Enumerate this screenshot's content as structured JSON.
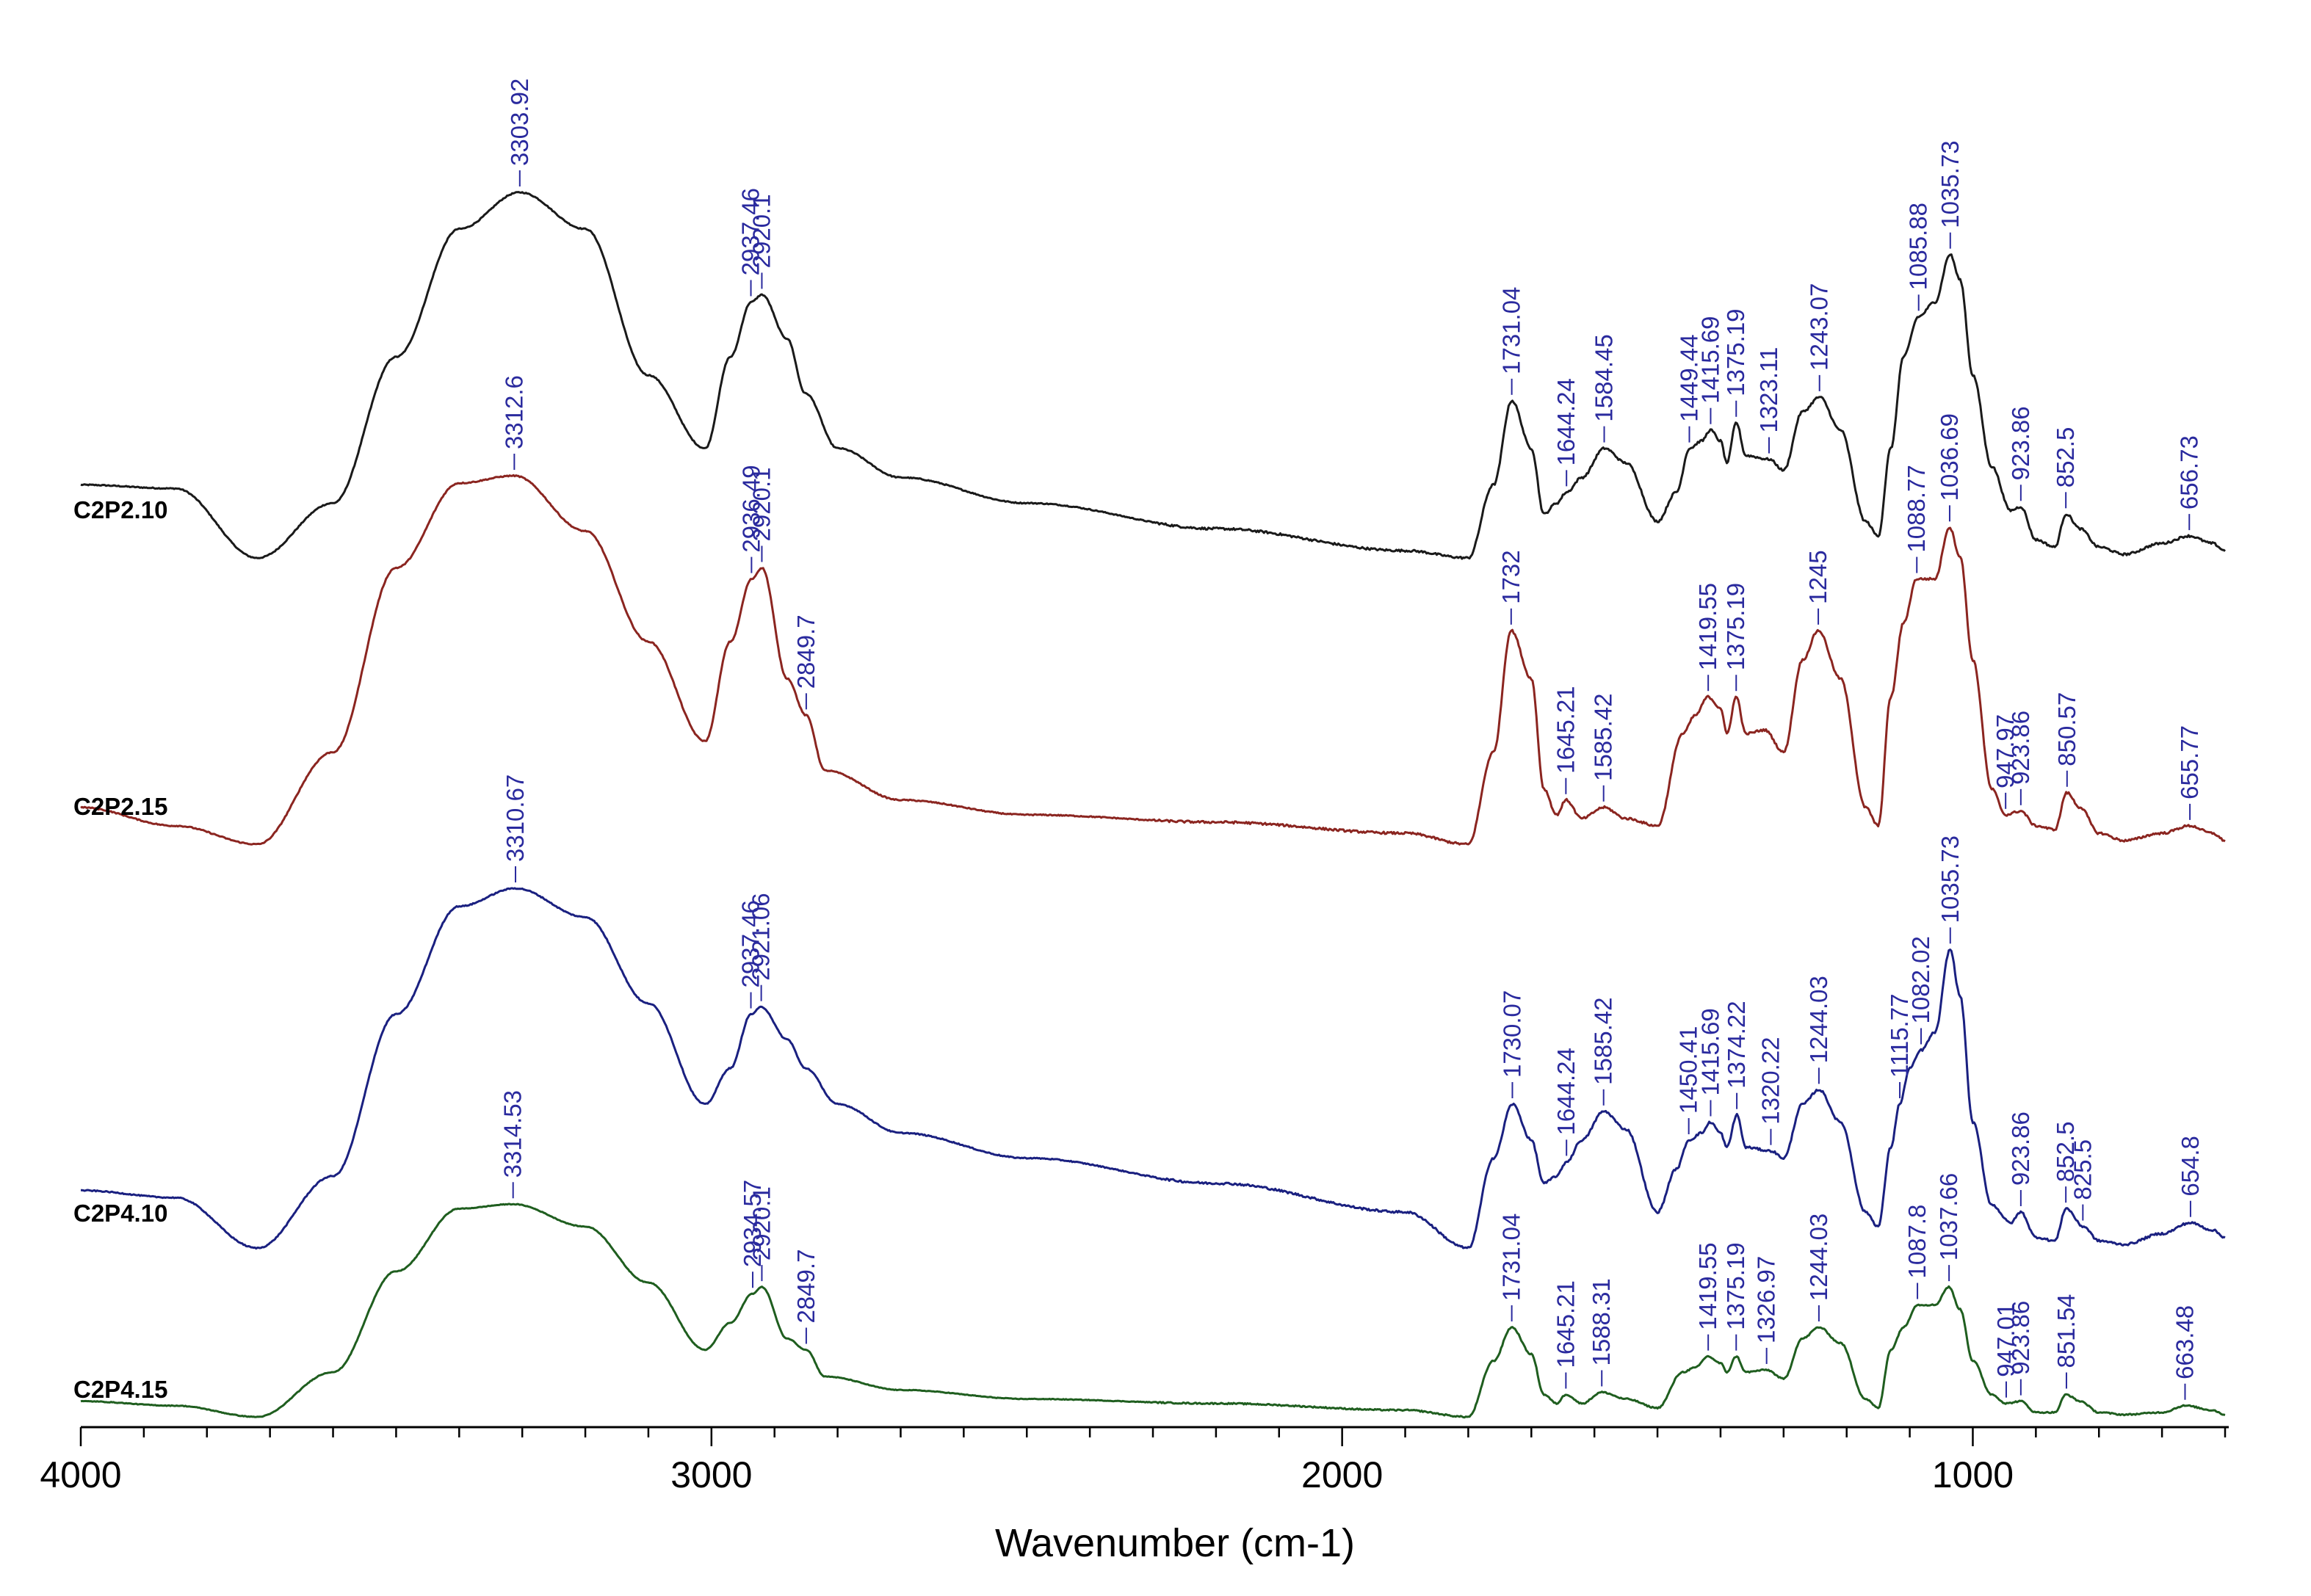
{
  "chart_data": {
    "type": "line",
    "title": "",
    "xlabel": "Wavenumber (cm-1)",
    "ylabel": "",
    "xlim": [
      4000,
      600
    ],
    "x_reversed": true,
    "x_ticks": [
      4000,
      3000,
      2000,
      1000
    ],
    "x_tick_labels": [
      "4000",
      "3000",
      "2000",
      "1000"
    ],
    "grid": false,
    "peak_label_color": "#2a2a9e",
    "series": [
      {
        "name": "C2P2.10",
        "color": "#1a1a1a",
        "points": [
          [
            4000,
            0.2
          ],
          [
            3850,
            0.19
          ],
          [
            3720,
            0.0
          ],
          [
            3600,
            0.15
          ],
          [
            3500,
            0.55
          ],
          [
            3400,
            0.9
          ],
          [
            3304,
            1.0
          ],
          [
            3200,
            0.9
          ],
          [
            3100,
            0.5
          ],
          [
            3010,
            0.3
          ],
          [
            2970,
            0.55
          ],
          [
            2937,
            0.7
          ],
          [
            2920,
            0.72
          ],
          [
            2880,
            0.6
          ],
          [
            2851,
            0.45
          ],
          [
            2800,
            0.3
          ],
          [
            2700,
            0.22
          ],
          [
            2500,
            0.15
          ],
          [
            2200,
            0.08
          ],
          [
            1900,
            0.02
          ],
          [
            1800,
            0.0
          ],
          [
            1760,
            0.2
          ],
          [
            1731,
            0.43
          ],
          [
            1700,
            0.3
          ],
          [
            1680,
            0.12
          ],
          [
            1660,
            0.15
          ],
          [
            1644,
            0.18
          ],
          [
            1620,
            0.22
          ],
          [
            1584,
            0.3
          ],
          [
            1550,
            0.26
          ],
          [
            1500,
            0.1
          ],
          [
            1470,
            0.18
          ],
          [
            1449,
            0.3
          ],
          [
            1430,
            0.32
          ],
          [
            1416,
            0.35
          ],
          [
            1400,
            0.32
          ],
          [
            1390,
            0.26
          ],
          [
            1375,
            0.37
          ],
          [
            1360,
            0.28
          ],
          [
            1323,
            0.27
          ],
          [
            1300,
            0.24
          ],
          [
            1270,
            0.4
          ],
          [
            1243,
            0.44
          ],
          [
            1210,
            0.35
          ],
          [
            1170,
            0.1
          ],
          [
            1150,
            0.06
          ],
          [
            1130,
            0.3
          ],
          [
            1110,
            0.55
          ],
          [
            1086,
            0.66
          ],
          [
            1060,
            0.7
          ],
          [
            1036,
            0.83
          ],
          [
            1020,
            0.76
          ],
          [
            1000,
            0.5
          ],
          [
            970,
            0.25
          ],
          [
            940,
            0.13
          ],
          [
            924,
            0.14
          ],
          [
            900,
            0.05
          ],
          [
            870,
            0.03
          ],
          [
            852,
            0.12
          ],
          [
            830,
            0.08
          ],
          [
            800,
            0.03
          ],
          [
            760,
            0.01
          ],
          [
            700,
            0.04
          ],
          [
            657,
            0.06
          ],
          [
            620,
            0.04
          ],
          [
            600,
            0.02
          ]
        ]
      },
      {
        "name": "C2P2.15",
        "color": "#8b2520",
        "points": [
          [
            4000,
            0.1
          ],
          [
            3850,
            0.05
          ],
          [
            3720,
            0.0
          ],
          [
            3600,
            0.25
          ],
          [
            3500,
            0.75
          ],
          [
            3400,
            0.98
          ],
          [
            3313,
            1.0
          ],
          [
            3200,
            0.85
          ],
          [
            3100,
            0.55
          ],
          [
            3010,
            0.28
          ],
          [
            2970,
            0.55
          ],
          [
            2936,
            0.72
          ],
          [
            2920,
            0.75
          ],
          [
            2880,
            0.45
          ],
          [
            2850,
            0.35
          ],
          [
            2820,
            0.2
          ],
          [
            2700,
            0.12
          ],
          [
            2500,
            0.08
          ],
          [
            2200,
            0.06
          ],
          [
            1900,
            0.03
          ],
          [
            1800,
            0.0
          ],
          [
            1760,
            0.25
          ],
          [
            1732,
            0.58
          ],
          [
            1700,
            0.45
          ],
          [
            1680,
            0.15
          ],
          [
            1660,
            0.08
          ],
          [
            1645,
            0.12
          ],
          [
            1620,
            0.07
          ],
          [
            1585,
            0.1
          ],
          [
            1550,
            0.07
          ],
          [
            1500,
            0.05
          ],
          [
            1460,
            0.3
          ],
          [
            1440,
            0.35
          ],
          [
            1420,
            0.4
          ],
          [
            1400,
            0.37
          ],
          [
            1390,
            0.3
          ],
          [
            1375,
            0.4
          ],
          [
            1360,
            0.3
          ],
          [
            1330,
            0.31
          ],
          [
            1300,
            0.25
          ],
          [
            1270,
            0.5
          ],
          [
            1245,
            0.58
          ],
          [
            1210,
            0.45
          ],
          [
            1170,
            0.1
          ],
          [
            1150,
            0.05
          ],
          [
            1130,
            0.4
          ],
          [
            1110,
            0.6
          ],
          [
            1089,
            0.72
          ],
          [
            1060,
            0.72
          ],
          [
            1037,
            0.86
          ],
          [
            1020,
            0.78
          ],
          [
            1000,
            0.5
          ],
          [
            970,
            0.15
          ],
          [
            948,
            0.08
          ],
          [
            924,
            0.09
          ],
          [
            900,
            0.05
          ],
          [
            870,
            0.04
          ],
          [
            851,
            0.14
          ],
          [
            830,
            0.1
          ],
          [
            800,
            0.03
          ],
          [
            760,
            0.01
          ],
          [
            700,
            0.03
          ],
          [
            656,
            0.05
          ],
          [
            620,
            0.03
          ],
          [
            600,
            0.01
          ]
        ]
      },
      {
        "name": "C2P4.10",
        "color": "#1a2080",
        "points": [
          [
            4000,
            0.16
          ],
          [
            3850,
            0.14
          ],
          [
            3720,
            0.0
          ],
          [
            3600,
            0.2
          ],
          [
            3500,
            0.65
          ],
          [
            3400,
            0.95
          ],
          [
            3311,
            1.0
          ],
          [
            3200,
            0.92
          ],
          [
            3100,
            0.68
          ],
          [
            3010,
            0.4
          ],
          [
            2970,
            0.5
          ],
          [
            2937,
            0.65
          ],
          [
            2921,
            0.67
          ],
          [
            2880,
            0.58
          ],
          [
            2851,
            0.5
          ],
          [
            2800,
            0.4
          ],
          [
            2700,
            0.32
          ],
          [
            2500,
            0.25
          ],
          [
            2200,
            0.18
          ],
          [
            1900,
            0.1
          ],
          [
            1800,
            0.0
          ],
          [
            1760,
            0.25
          ],
          [
            1730,
            0.4
          ],
          [
            1700,
            0.3
          ],
          [
            1680,
            0.18
          ],
          [
            1660,
            0.2
          ],
          [
            1644,
            0.24
          ],
          [
            1620,
            0.3
          ],
          [
            1585,
            0.38
          ],
          [
            1550,
            0.33
          ],
          [
            1500,
            0.1
          ],
          [
            1470,
            0.22
          ],
          [
            1450,
            0.3
          ],
          [
            1430,
            0.32
          ],
          [
            1416,
            0.35
          ],
          [
            1400,
            0.32
          ],
          [
            1390,
            0.28
          ],
          [
            1374,
            0.37
          ],
          [
            1360,
            0.28
          ],
          [
            1320,
            0.27
          ],
          [
            1300,
            0.25
          ],
          [
            1270,
            0.4
          ],
          [
            1244,
            0.44
          ],
          [
            1210,
            0.35
          ],
          [
            1170,
            0.1
          ],
          [
            1150,
            0.06
          ],
          [
            1130,
            0.28
          ],
          [
            1116,
            0.4
          ],
          [
            1100,
            0.5
          ],
          [
            1082,
            0.55
          ],
          [
            1060,
            0.6
          ],
          [
            1036,
            0.83
          ],
          [
            1020,
            0.7
          ],
          [
            1000,
            0.35
          ],
          [
            970,
            0.12
          ],
          [
            940,
            0.07
          ],
          [
            924,
            0.1
          ],
          [
            900,
            0.03
          ],
          [
            870,
            0.02
          ],
          [
            852,
            0.11
          ],
          [
            825,
            0.06
          ],
          [
            800,
            0.02
          ],
          [
            760,
            0.01
          ],
          [
            700,
            0.04
          ],
          [
            655,
            0.07
          ],
          [
            620,
            0.05
          ],
          [
            600,
            0.03
          ]
        ]
      },
      {
        "name": "C2P4.15",
        "color": "#1f5e1f",
        "points": [
          [
            4000,
            0.07
          ],
          [
            3850,
            0.05
          ],
          [
            3720,
            0.0
          ],
          [
            3600,
            0.2
          ],
          [
            3500,
            0.65
          ],
          [
            3400,
            0.93
          ],
          [
            3315,
            0.95
          ],
          [
            3200,
            0.85
          ],
          [
            3100,
            0.6
          ],
          [
            3010,
            0.3
          ],
          [
            2970,
            0.42
          ],
          [
            2935,
            0.55
          ],
          [
            2920,
            0.58
          ],
          [
            2880,
            0.35
          ],
          [
            2850,
            0.3
          ],
          [
            2820,
            0.18
          ],
          [
            2700,
            0.12
          ],
          [
            2500,
            0.08
          ],
          [
            2200,
            0.06
          ],
          [
            1900,
            0.03
          ],
          [
            1800,
            0.0
          ],
          [
            1760,
            0.25
          ],
          [
            1731,
            0.4
          ],
          [
            1700,
            0.28
          ],
          [
            1680,
            0.1
          ],
          [
            1660,
            0.06
          ],
          [
            1645,
            0.1
          ],
          [
            1620,
            0.06
          ],
          [
            1588,
            0.11
          ],
          [
            1550,
            0.08
          ],
          [
            1500,
            0.04
          ],
          [
            1460,
            0.2
          ],
          [
            1440,
            0.22
          ],
          [
            1420,
            0.27
          ],
          [
            1400,
            0.24
          ],
          [
            1390,
            0.2
          ],
          [
            1375,
            0.27
          ],
          [
            1360,
            0.2
          ],
          [
            1327,
            0.21
          ],
          [
            1300,
            0.17
          ],
          [
            1270,
            0.35
          ],
          [
            1244,
            0.4
          ],
          [
            1210,
            0.33
          ],
          [
            1170,
            0.08
          ],
          [
            1150,
            0.04
          ],
          [
            1130,
            0.3
          ],
          [
            1110,
            0.4
          ],
          [
            1088,
            0.5
          ],
          [
            1060,
            0.5
          ],
          [
            1038,
            0.58
          ],
          [
            1020,
            0.48
          ],
          [
            1000,
            0.25
          ],
          [
            970,
            0.1
          ],
          [
            947,
            0.06
          ],
          [
            924,
            0.07
          ],
          [
            900,
            0.02
          ],
          [
            870,
            0.02
          ],
          [
            852,
            0.1
          ],
          [
            830,
            0.07
          ],
          [
            800,
            0.02
          ],
          [
            760,
            0.01
          ],
          [
            700,
            0.02
          ],
          [
            663,
            0.05
          ],
          [
            620,
            0.03
          ],
          [
            600,
            0.01
          ]
        ]
      }
    ],
    "peak_labels": [
      {
        "series": "C2P2.10",
        "labels": [
          "3303.92",
          "2937.46",
          "2920.1",
          "1731.04",
          "1644.24",
          "1584.45",
          "1449.44",
          "1415.69",
          "1375.19",
          "1323.11",
          "1243.07",
          "1085.88",
          "1035.73",
          "923.86",
          "852.5",
          "656.73"
        ]
      },
      {
        "series": "C2P2.15",
        "labels": [
          "3312.6",
          "2936.49",
          "2920.1",
          "2849.7",
          "1732",
          "1645.21",
          "1585.42",
          "1419.55",
          "1375.19",
          "1245",
          "1088.77",
          "1036.69",
          "947.97",
          "923.86",
          "850.57",
          "655.77"
        ]
      },
      {
        "series": "C2P4.10",
        "labels": [
          "3310.67",
          "2937.46",
          "2921.06",
          "1730.07",
          "1644.24",
          "1585.42",
          "1450.41",
          "1415.69",
          "1374.22",
          "1320.22",
          "1244.03",
          "1115.77",
          "1082.02",
          "1035.73",
          "923.86",
          "852.5",
          "825.5",
          "654.8"
        ]
      },
      {
        "series": "C2P4.15",
        "labels": [
          "3314.53",
          "2934.57",
          "2920.1",
          "2849.7",
          "1731.04",
          "1645.21",
          "1588.31",
          "1419.55",
          "1375.19",
          "1326.97",
          "1244.03",
          "1087.8",
          "1037.66",
          "947.01",
          "923.86",
          "851.54",
          "663.48"
        ]
      }
    ]
  }
}
